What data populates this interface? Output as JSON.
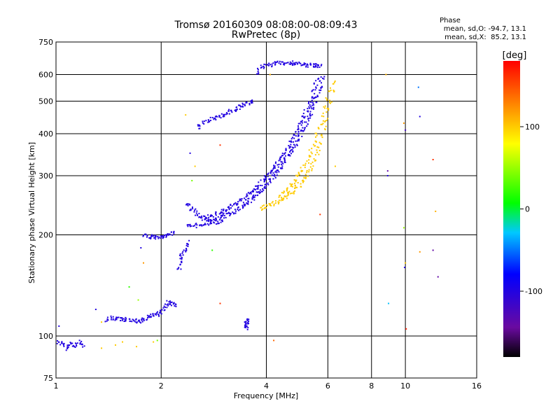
{
  "chart_data": {
    "type": "scatter",
    "title": "Tromsø 20160309 08:08:00-08:09:43",
    "subtitle": "RwPretec (8p)",
    "xlabel": "Frequency [MHz]",
    "ylabel": "Stationary phase Virtual Height [km]",
    "x_scale": "log",
    "y_scale": "log",
    "xlim": [
      1,
      16
    ],
    "ylim": [
      75,
      750
    ],
    "x_ticks": [
      1,
      2,
      4,
      6,
      8,
      10,
      16
    ],
    "y_ticks": [
      75,
      100,
      200,
      300,
      400,
      500,
      600,
      750
    ],
    "grid": true,
    "phase_stats": {
      "heading": "Phase",
      "line_o": "mean, sd,O: -94.7, 13.1",
      "line_x": "mean, sd,X:  85.2, 13.1"
    },
    "colorbar": {
      "label": "[deg]",
      "range": [
        -180,
        180
      ],
      "ticks": [
        100,
        0,
        -100
      ],
      "colormap": "rainbow"
    },
    "traces": [
      {
        "x": [
          1.02,
          1.05,
          1.08,
          1.1,
          1.13,
          1.16,
          1.2
        ],
        "y": [
          96,
          94,
          92,
          95,
          93,
          96,
          94
        ],
        "phase": -100
      },
      {
        "x": [
          1.4,
          1.45,
          1.5,
          1.55,
          1.6,
          1.65,
          1.7,
          1.75,
          1.8,
          1.85,
          1.9,
          1.95,
          2.0,
          2.05,
          2.1,
          2.15,
          2.2
        ],
        "y": [
          112,
          113,
          112,
          112,
          112,
          112,
          111,
          111,
          112,
          114,
          115,
          116,
          118,
          122,
          126,
          125,
          123
        ],
        "phase": -100
      },
      {
        "x": [
          1.8,
          1.85,
          1.9,
          1.95,
          2.0,
          2.05,
          2.1,
          2.15
        ],
        "y": [
          198,
          198,
          197,
          197,
          197,
          198,
          200,
          203
        ],
        "phase": -100
      },
      {
        "x": [
          2.38,
          2.45,
          2.52,
          2.6,
          2.7,
          2.8,
          2.9,
          3.0
        ],
        "y": [
          248,
          240,
          232,
          226,
          222,
          219,
          218,
          219
        ],
        "phase": -100
      },
      {
        "x": [
          2.4,
          2.5,
          2.6,
          2.7,
          2.8,
          2.9,
          3.0,
          3.1,
          3.2,
          3.3,
          3.4,
          3.5,
          3.6,
          3.7,
          3.8,
          3.9,
          4.0,
          4.1,
          4.2,
          4.3,
          4.4,
          4.5,
          4.6,
          4.7,
          4.8,
          4.9,
          5.0,
          5.1,
          5.2,
          5.3,
          5.4,
          5.5,
          5.6,
          5.7,
          5.8
        ],
        "y": [
          212,
          213,
          215,
          217,
          220,
          223,
          226,
          229,
          233,
          237,
          242,
          247,
          253,
          259,
          266,
          273,
          281,
          290,
          299,
          309,
          319,
          330,
          342,
          354,
          367,
          381,
          396,
          412,
          430,
          449,
          470,
          493,
          520,
          550,
          585
        ],
        "phase": -100
      },
      {
        "x": [
          2.6,
          2.7,
          2.8,
          2.9,
          3.0,
          3.1,
          3.2,
          3.3,
          3.4,
          3.5,
          3.6,
          3.7,
          3.8,
          3.9,
          4.0,
          4.1,
          4.2,
          4.3,
          4.4,
          4.5,
          4.6,
          4.7,
          4.8,
          4.9,
          5.0,
          5.1,
          5.2,
          5.3,
          5.4,
          5.5,
          5.6
        ],
        "y": [
          224,
          226,
          229,
          232,
          235,
          239,
          243,
          248,
          253,
          259,
          265,
          272,
          279,
          287,
          296,
          305,
          315,
          326,
          337,
          349,
          362,
          376,
          391,
          407,
          425,
          444,
          465,
          488,
          515,
          545,
          580
        ],
        "phase": -100
      },
      {
        "x": [
          2.55,
          2.65,
          2.75,
          2.85,
          2.95,
          3.05,
          3.15,
          3.25,
          3.35,
          3.45,
          3.55,
          3.65
        ],
        "y": [
          420,
          430,
          438,
          445,
          452,
          459,
          466,
          473,
          480,
          487,
          494,
          500
        ],
        "phase": -100
      },
      {
        "x": [
          3.75,
          3.9,
          4.05,
          4.2,
          4.35,
          4.5,
          4.65,
          4.8,
          4.95,
          5.1,
          5.25,
          5.4,
          5.55,
          5.7
        ],
        "y": [
          610,
          630,
          640,
          645,
          648,
          650,
          650,
          648,
          645,
          642,
          640,
          638,
          636,
          634
        ],
        "phase": -100
      },
      {
        "x": [
          3.85,
          4.0,
          4.15,
          4.3,
          4.45,
          4.6,
          4.75,
          4.9,
          5.05,
          5.2,
          5.35,
          5.5,
          5.65,
          5.8,
          5.95,
          6.1,
          6.25
        ],
        "y": [
          240,
          243,
          247,
          251,
          256,
          262,
          269,
          277,
          287,
          299,
          315,
          335,
          360,
          395,
          440,
          500,
          570
        ],
        "phase": 100
      },
      {
        "x": [
          4.4,
          4.55,
          4.7,
          4.85,
          5.0,
          5.15,
          5.3,
          5.45,
          5.6,
          5.75,
          5.9,
          6.05
        ],
        "y": [
          262,
          270,
          280,
          292,
          306,
          322,
          342,
          366,
          396,
          432,
          478,
          540
        ],
        "phase": 100
      },
      {
        "x": [
          3.5,
          3.51,
          3.52,
          3.53
        ],
        "y": [
          106,
          108,
          110,
          112
        ],
        "phase": -100
      },
      {
        "x": [
          2.25,
          2.28,
          2.3,
          2.35,
          2.4
        ],
        "y": [
          160,
          168,
          175,
          182,
          190
        ],
        "phase": -100
      }
    ],
    "scatter_points": [
      {
        "x": 1.75,
        "y": 183,
        "phase": -100
      },
      {
        "x": 1.78,
        "y": 165,
        "phase": 120
      },
      {
        "x": 1.62,
        "y": 140,
        "phase": 20
      },
      {
        "x": 1.72,
        "y": 128,
        "phase": 50
      },
      {
        "x": 1.3,
        "y": 120,
        "phase": -100
      },
      {
        "x": 1.35,
        "y": 110,
        "phase": 100
      },
      {
        "x": 1.55,
        "y": 96,
        "phase": 100
      },
      {
        "x": 1.48,
        "y": 94,
        "phase": 100
      },
      {
        "x": 1.7,
        "y": 93,
        "phase": 100
      },
      {
        "x": 1.9,
        "y": 96,
        "phase": 100
      },
      {
        "x": 1.95,
        "y": 97,
        "phase": 40
      },
      {
        "x": 1.35,
        "y": 92,
        "phase": 100
      },
      {
        "x": 1.02,
        "y": 107,
        "phase": -100
      },
      {
        "x": 2.42,
        "y": 350,
        "phase": -100
      },
      {
        "x": 2.5,
        "y": 320,
        "phase": 100
      },
      {
        "x": 2.45,
        "y": 290,
        "phase": 40
      },
      {
        "x": 2.95,
        "y": 370,
        "phase": 160
      },
      {
        "x": 2.8,
        "y": 180,
        "phase": 20
      },
      {
        "x": 2.95,
        "y": 125,
        "phase": 160
      },
      {
        "x": 2.35,
        "y": 455,
        "phase": 100
      },
      {
        "x": 4.2,
        "y": 97,
        "phase": 140
      },
      {
        "x": 4.1,
        "y": 600,
        "phase": 110
      },
      {
        "x": 5.7,
        "y": 230,
        "phase": 160
      },
      {
        "x": 6.3,
        "y": 320,
        "phase": 100
      },
      {
        "x": 8.8,
        "y": 600,
        "phase": 110
      },
      {
        "x": 8.9,
        "y": 310,
        "phase": -140
      },
      {
        "x": 8.9,
        "y": 300,
        "phase": -100
      },
      {
        "x": 8.95,
        "y": 125,
        "phase": -30
      },
      {
        "x": 9.9,
        "y": 430,
        "phase": 120
      },
      {
        "x": 10.0,
        "y": 410,
        "phase": -120
      },
      {
        "x": 9.9,
        "y": 210,
        "phase": 50
      },
      {
        "x": 10.0,
        "y": 165,
        "phase": 100
      },
      {
        "x": 9.95,
        "y": 160,
        "phase": -100
      },
      {
        "x": 10.05,
        "y": 105,
        "phase": 170
      },
      {
        "x": 10.9,
        "y": 550,
        "phase": -50
      },
      {
        "x": 11.0,
        "y": 450,
        "phase": -100
      },
      {
        "x": 11.0,
        "y": 178,
        "phase": 120
      },
      {
        "x": 12.0,
        "y": 335,
        "phase": 160
      },
      {
        "x": 12.0,
        "y": 180,
        "phase": -140
      },
      {
        "x": 12.2,
        "y": 235,
        "phase": 110
      },
      {
        "x": 12.4,
        "y": 150,
        "phase": -140
      }
    ]
  }
}
